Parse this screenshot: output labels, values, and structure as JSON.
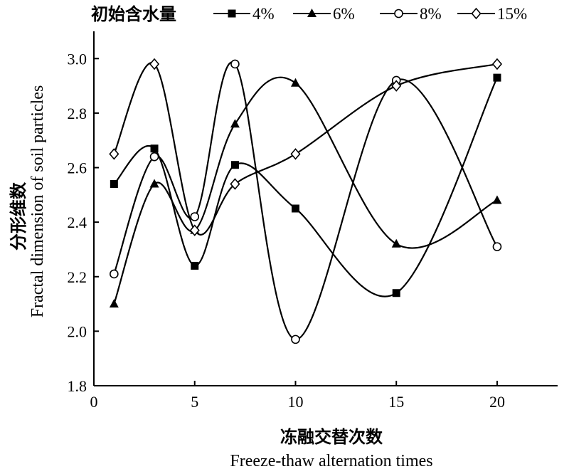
{
  "chart_data": {
    "type": "line",
    "legend_title": "初始含水量",
    "legend_placement": "top",
    "x": [
      1,
      3,
      5,
      7,
      10,
      15,
      20
    ],
    "xlim": [
      0,
      23
    ],
    "ylim": [
      1.8,
      3.1
    ],
    "x_ticks": [
      "0",
      "5",
      "10",
      "15",
      "20"
    ],
    "y_ticks": [
      "1.8",
      "2.0",
      "2.2",
      "2.4",
      "2.6",
      "2.8",
      "3.0"
    ],
    "xlabel_zh": "冻融交替次数",
    "xlabel_en": "Freeze-thaw alternation times",
    "ylabel_zh": "分形维数",
    "ylabel_en": "Fractal dimension of soil particles",
    "grid": false,
    "series": [
      {
        "name": "4%",
        "marker": "filled-square",
        "values": [
          2.54,
          2.67,
          2.24,
          2.61,
          2.45,
          2.14,
          2.93
        ]
      },
      {
        "name": "6%",
        "marker": "filled-triangle",
        "values": [
          2.1,
          2.54,
          2.37,
          2.76,
          2.91,
          2.32,
          2.48
        ]
      },
      {
        "name": "8%",
        "marker": "open-circle",
        "values": [
          2.21,
          2.64,
          2.42,
          2.98,
          1.97,
          2.92,
          2.31
        ]
      },
      {
        "name": "15%",
        "marker": "open-diamond",
        "values": [
          2.65,
          2.98,
          2.37,
          2.54,
          2.65,
          2.9,
          2.98
        ]
      }
    ]
  }
}
